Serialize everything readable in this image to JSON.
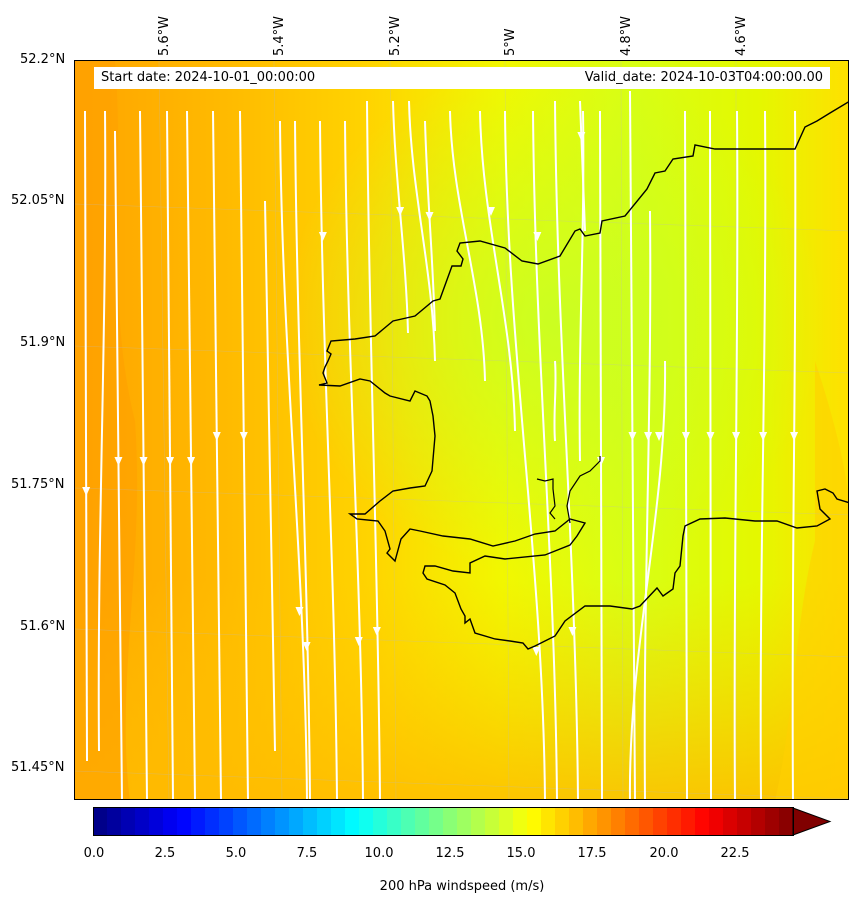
{
  "header": {
    "start_date": "Start date: 2024-10-01_00:00:00",
    "valid_date": "Valid_date: 2024-10-03T04:00:00.00"
  },
  "axes": {
    "lon_ticks": [
      "5.6°W",
      "5.4°W",
      "5.2°W",
      "5°W",
      "4.8°W",
      "4.6°W"
    ],
    "lat_ticks": [
      "52.2°N",
      "52.05°N",
      "51.9°N",
      "51.75°N",
      "51.6°N",
      "51.45°N"
    ]
  },
  "colorbar": {
    "label": "200 hPa windspeed (m/s)",
    "ticks": [
      "0.0",
      "2.5",
      "5.0",
      "7.5",
      "10.0",
      "12.5",
      "15.0",
      "17.5",
      "20.0",
      "22.5"
    ],
    "min": 0,
    "max": 25,
    "colormap": "jet",
    "extend": "max"
  },
  "field": {
    "variable": "200 hPa windspeed",
    "units": "m/s",
    "range_shown": [
      15,
      19
    ],
    "streamline_color": "#ffffff",
    "coastline_color": "#000000"
  }
}
